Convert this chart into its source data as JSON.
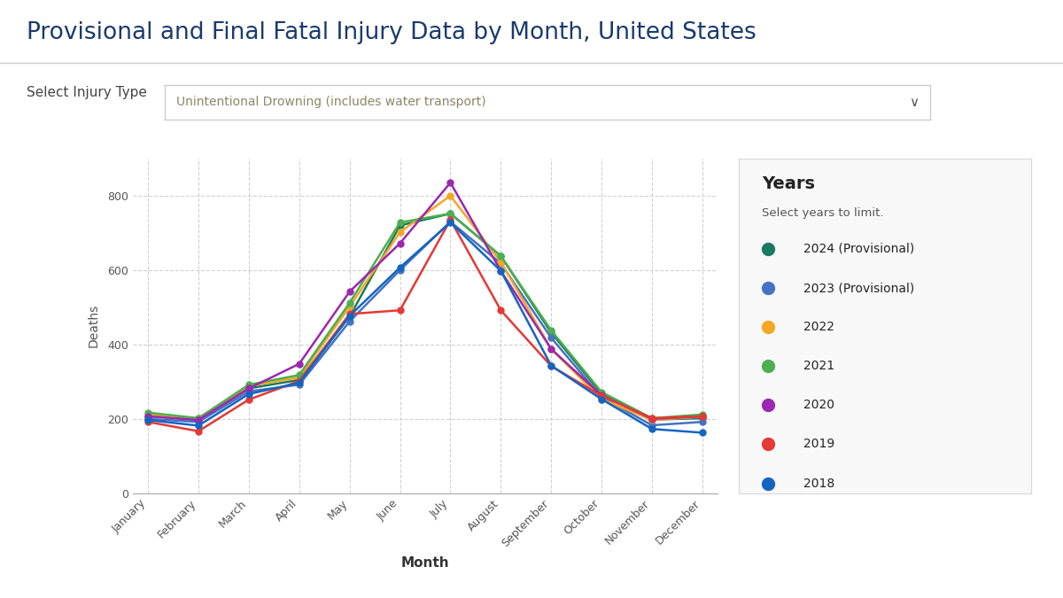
{
  "title": "Provisional and Final Fatal Injury Data by Month, United States",
  "subtitle_label": "Select Injury Type",
  "subtitle_value": "Unintentional Drowning (includes water transport)",
  "xlabel": "Month",
  "ylabel": "Deaths",
  "months": [
    "January",
    "February",
    "March",
    "April",
    "May",
    "June",
    "July",
    "August",
    "September",
    "October",
    "November",
    "December"
  ],
  "ylim": [
    0,
    900
  ],
  "yticks": [
    0,
    200,
    400,
    600,
    800
  ],
  "series": [
    {
      "label": "2024 (Provisional)",
      "color": "#1a7a5e",
      "data": [
        208,
        198,
        282,
        305,
        475,
        720,
        752,
        638,
        432,
        267,
        198,
        202
      ]
    },
    {
      "label": "2023 (Provisional)",
      "color": "#4472c4",
      "data": [
        200,
        192,
        274,
        292,
        462,
        600,
        730,
        618,
        418,
        258,
        183,
        192
      ]
    },
    {
      "label": "2022",
      "color": "#f5a623",
      "data": [
        212,
        202,
        288,
        312,
        502,
        702,
        800,
        622,
        388,
        253,
        197,
        206
      ]
    },
    {
      "label": "2021",
      "color": "#4caf50",
      "data": [
        217,
        202,
        292,
        318,
        512,
        728,
        752,
        638,
        438,
        272,
        202,
        212
      ]
    },
    {
      "label": "2020",
      "color": "#9c27b0",
      "data": [
        207,
        197,
        282,
        348,
        542,
        672,
        835,
        598,
        388,
        263,
        200,
        207
      ]
    },
    {
      "label": "2019",
      "color": "#e53935",
      "data": [
        192,
        167,
        252,
        302,
        482,
        492,
        735,
        492,
        342,
        262,
        202,
        207
      ]
    },
    {
      "label": "2018",
      "color": "#1565c0",
      "data": [
        197,
        182,
        267,
        297,
        477,
        607,
        728,
        598,
        343,
        253,
        173,
        163
      ]
    }
  ],
  "background_color": "#ffffff",
  "plot_bg_color": "#ffffff",
  "grid_color": "#cccccc",
  "title_color": "#1a3a6e",
  "legend_title": "Years",
  "legend_subtitle": "Select years to limit.",
  "legend_box_color": "#f8f8f8",
  "legend_box_edge": "#dddddd",
  "separator_color": "#cccccc",
  "dropdown_text_color": "#888866",
  "dropdown_border_color": "#cccccc",
  "label_color": "#444444"
}
